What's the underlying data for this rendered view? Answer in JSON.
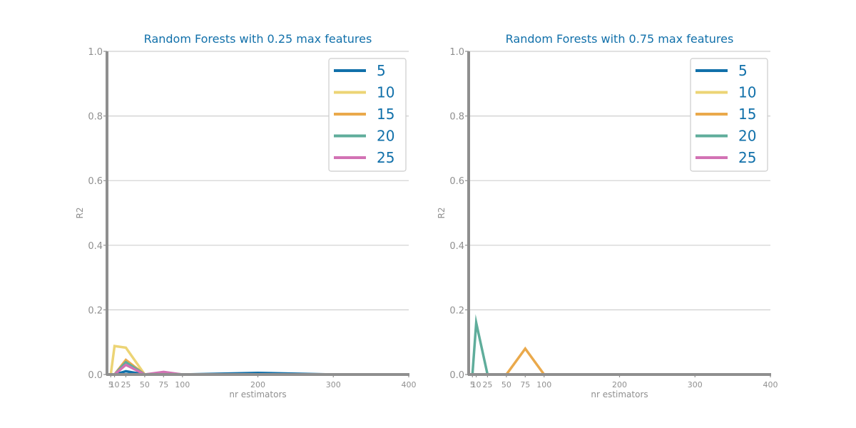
{
  "chart_data": [
    {
      "type": "line",
      "title": "Random Forests with 0.25 max features",
      "xlabel": "nr estimators",
      "ylabel": "R2",
      "ylim": [
        0,
        1
      ],
      "xlim": [
        0,
        400
      ],
      "x": [
        5,
        10,
        25,
        50,
        75,
        100,
        200,
        300,
        400
      ],
      "xticks": [
        5,
        10,
        25,
        50,
        75,
        100,
        200,
        300,
        400
      ],
      "yticks": [
        0.0,
        0.2,
        0.4,
        0.6,
        0.8,
        1.0
      ],
      "grid": "horizontal",
      "legend_position": "top-right",
      "series": [
        {
          "name": "5",
          "color": "#1170aa",
          "values": [
            0,
            0,
            0.01,
            0,
            0,
            0,
            0.005,
            0,
            0
          ]
        },
        {
          "name": "10",
          "color": "#ecd475",
          "values": [
            0,
            0.088,
            0.083,
            0,
            0,
            0,
            0,
            0,
            0
          ]
        },
        {
          "name": "15",
          "color": "#eaa94b",
          "values": [
            0,
            0,
            0.045,
            0,
            0,
            0,
            0,
            0,
            0
          ]
        },
        {
          "name": "20",
          "color": "#5fad9b",
          "values": [
            0,
            0,
            0.038,
            0,
            0.005,
            0,
            0,
            0,
            0
          ]
        },
        {
          "name": "25",
          "color": "#d272b4",
          "values": [
            0,
            0,
            0.03,
            0,
            0.008,
            0,
            0,
            0,
            0
          ]
        }
      ]
    },
    {
      "type": "line",
      "title": "Random Forests with 0.75 max features",
      "xlabel": "nr estimators",
      "ylabel": "R2",
      "ylim": [
        0,
        1
      ],
      "xlim": [
        0,
        400
      ],
      "x": [
        5,
        10,
        25,
        50,
        75,
        100,
        200,
        300,
        400
      ],
      "xticks": [
        5,
        10,
        25,
        50,
        75,
        100,
        200,
        300,
        400
      ],
      "yticks": [
        0.0,
        0.2,
        0.4,
        0.6,
        0.8,
        1.0
      ],
      "grid": "horizontal",
      "legend_position": "top-right",
      "series": [
        {
          "name": "5",
          "color": "#1170aa",
          "values": [
            0,
            0,
            0,
            0,
            0,
            0,
            0,
            0,
            0
          ]
        },
        {
          "name": "10",
          "color": "#ecd475",
          "values": [
            0,
            0,
            0,
            0,
            0,
            0,
            0,
            0,
            0
          ]
        },
        {
          "name": "15",
          "color": "#eaa94b",
          "values": [
            0,
            0,
            0,
            0,
            0.08,
            0,
            0,
            0,
            0
          ]
        },
        {
          "name": "20",
          "color": "#5fad9b",
          "values": [
            0,
            0.16,
            0,
            0,
            0,
            0,
            0,
            0,
            0
          ]
        },
        {
          "name": "25",
          "color": "#d272b4",
          "values": [
            0,
            0,
            0,
            0,
            0,
            0,
            0,
            0,
            0
          ]
        }
      ]
    }
  ]
}
